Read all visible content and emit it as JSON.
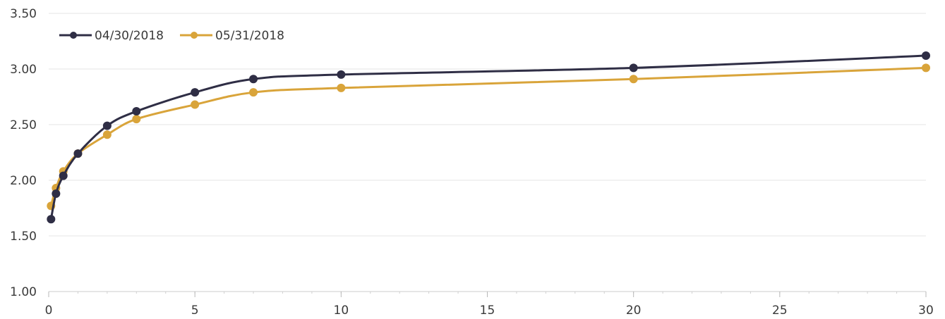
{
  "chart_data": {
    "type": "line",
    "title": "",
    "xlabel": "",
    "ylabel": "",
    "xlim": [
      0,
      30
    ],
    "ylim": [
      1.0,
      3.5
    ],
    "x_ticks": [
      "0",
      "5",
      "10",
      "15",
      "20",
      "25",
      "30"
    ],
    "y_ticks": [
      "1.00",
      "1.50",
      "2.00",
      "2.50",
      "3.00",
      "3.50"
    ],
    "grid": "horizontal",
    "legend": "top-left",
    "series": [
      {
        "name": "04/30/2018",
        "color": "#2f2e45",
        "points": [
          [
            0.08,
            1.65
          ],
          [
            0.25,
            1.88
          ],
          [
            0.5,
            2.04
          ],
          [
            1,
            2.24
          ],
          [
            2,
            2.49
          ],
          [
            3,
            2.62
          ],
          [
            5,
            2.79
          ],
          [
            7,
            2.91
          ],
          [
            10,
            2.95
          ],
          [
            20,
            3.01
          ],
          [
            30,
            3.12
          ]
        ]
      },
      {
        "name": "05/31/2018",
        "color": "#d9a43a",
        "points": [
          [
            0.08,
            1.77
          ],
          [
            0.25,
            1.93
          ],
          [
            0.5,
            2.08
          ],
          [
            1,
            2.24
          ],
          [
            2,
            2.41
          ],
          [
            3,
            2.55
          ],
          [
            5,
            2.68
          ],
          [
            7,
            2.79
          ],
          [
            10,
            2.83
          ],
          [
            20,
            2.91
          ],
          [
            30,
            3.01
          ]
        ]
      }
    ]
  }
}
